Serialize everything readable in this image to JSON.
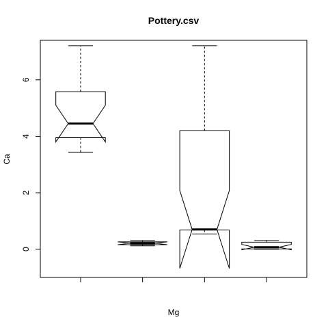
{
  "chart_data": {
    "type": "boxplot",
    "title": "Pottery.csv",
    "xlabel": "Mg",
    "ylabel": "Ca",
    "ylim": [
      -1.0,
      7.4
    ],
    "yticks": [
      0,
      2,
      4,
      6
    ],
    "notch": true,
    "boxes": [
      {
        "whisker_low": 3.43,
        "q1": 3.95,
        "median": 4.45,
        "q3": 5.58,
        "whisker_high": 7.21,
        "notch_low": 3.8,
        "notch_high": 5.1
      },
      {
        "whisker_low": 0.12,
        "q1": 0.16,
        "median": 0.21,
        "q3": 0.26,
        "whisker_high": 0.31,
        "notch_low": 0.16,
        "notch_high": 0.26
      },
      {
        "whisker_low": 0.54,
        "q1": 0.68,
        "median": 0.7,
        "q3": 4.2,
        "whisker_high": 7.21,
        "notch_low": -0.68,
        "notch_high": 2.08
      },
      {
        "whisker_low": 0.0,
        "q1": 0.01,
        "median": 0.07,
        "q3": 0.25,
        "whisker_high": 0.31,
        "notch_low": -0.02,
        "notch_high": 0.17
      }
    ]
  }
}
